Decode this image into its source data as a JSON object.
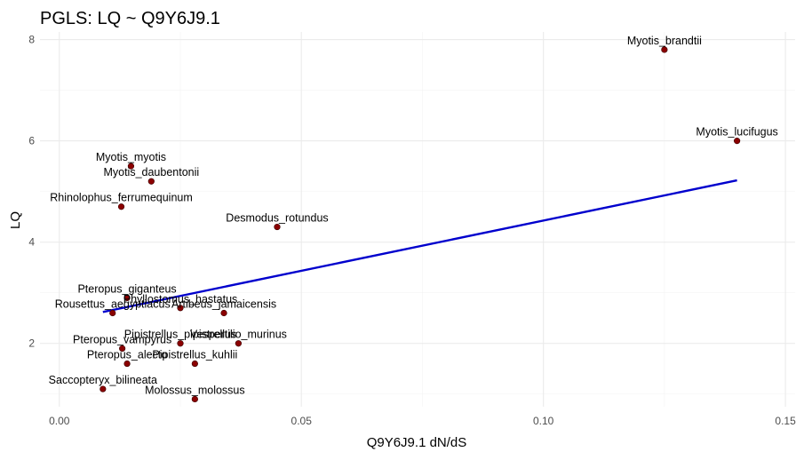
{
  "chart_data": {
    "type": "scatter",
    "title": "PGLS: LQ ~ Q9Y6J9.1",
    "xlabel": "Q9Y6J9.1 dN/dS",
    "ylabel": "LQ",
    "xlim": [
      -0.004,
      0.152
    ],
    "ylim": [
      0.75,
      8.15
    ],
    "x_ticks": [
      0.0,
      0.05,
      0.1,
      0.15
    ],
    "x_tick_labels": [
      "0.00",
      "0.05",
      "0.10",
      "0.15"
    ],
    "y_ticks": [
      2,
      4,
      6,
      8
    ],
    "y_tick_labels": [
      "2",
      "4",
      "6",
      "8"
    ],
    "grid": true,
    "point_color": "#8b0000",
    "line_color": "#0000cd",
    "points": [
      {
        "label": "Myotis_brandtii",
        "x": 0.125,
        "y": 7.8
      },
      {
        "label": "Myotis_lucifugus",
        "x": 0.14,
        "y": 6.0
      },
      {
        "label": "Myotis_myotis",
        "x": 0.0148,
        "y": 5.5
      },
      {
        "label": "Myotis_daubentonii",
        "x": 0.019,
        "y": 5.2
      },
      {
        "label": "Rhinolophus_ferrumequinum",
        "x": 0.0128,
        "y": 4.7
      },
      {
        "label": "Desmodus_rotundus",
        "x": 0.045,
        "y": 4.3
      },
      {
        "label": "Pteropus_giganteus",
        "x": 0.014,
        "y": 2.9
      },
      {
        "label": "Phyllostomus_hastatus",
        "x": 0.025,
        "y": 2.7
      },
      {
        "label": "Rousettus_aegyptiacus",
        "x": 0.011,
        "y": 2.6
      },
      {
        "label": "Artibeus_jamaicensis",
        "x": 0.034,
        "y": 2.6
      },
      {
        "label": "Pteropus_vampyrus",
        "x": 0.013,
        "y": 1.9
      },
      {
        "label": "Pipistrellus_pipistrellus",
        "x": 0.025,
        "y": 2.0
      },
      {
        "label": "Vespertilio_murinus",
        "x": 0.037,
        "y": 2.0
      },
      {
        "label": "Pteropus_alecto",
        "x": 0.014,
        "y": 1.6
      },
      {
        "label": "Pipistrellus_kuhlii",
        "x": 0.028,
        "y": 1.6
      },
      {
        "label": "Saccopteryx_bilineata",
        "x": 0.009,
        "y": 1.1
      },
      {
        "label": "Molossus_molossus",
        "x": 0.028,
        "y": 0.9
      }
    ],
    "fit_line": {
      "x": [
        0.009,
        0.14
      ],
      "y": [
        2.62,
        5.22
      ]
    }
  }
}
